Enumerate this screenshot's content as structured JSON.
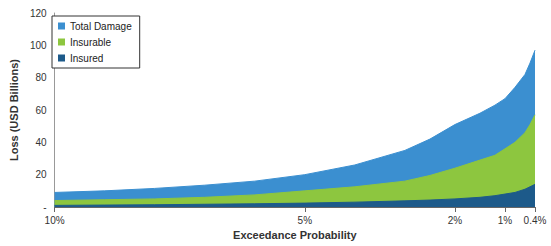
{
  "chart_data": {
    "type": "area",
    "x_label": "Exceedance Probability",
    "y_label": "Loss (USD Billions)",
    "x": [
      10,
      9,
      8,
      7,
      6,
      5,
      4,
      3,
      2.5,
      2,
      1.5,
      1.2,
      1,
      0.8,
      0.6,
      0.5,
      0.4
    ],
    "series": [
      {
        "name": "Total Damage",
        "color": "#3b8fd0",
        "values": [
          9,
          10,
          11.5,
          13.5,
          16,
          20,
          26,
          35,
          42,
          51,
          58,
          63,
          67,
          74,
          82,
          89,
          97
        ]
      },
      {
        "name": "Insurable",
        "color": "#8dc63f",
        "values": [
          4,
          4.5,
          5,
          6,
          7.5,
          10,
          12.5,
          16,
          19.5,
          24,
          29,
          32,
          36,
          40,
          46,
          51,
          57
        ]
      },
      {
        "name": "Insured",
        "color": "#1d5a8a",
        "values": [
          1,
          1.2,
          1.4,
          1.7,
          2,
          2.4,
          3,
          3.8,
          4.3,
          5,
          6,
          7,
          8,
          9,
          11,
          12.5,
          14
        ]
      }
    ],
    "xlim": [
      10,
      0.4
    ],
    "xticks": [
      {
        "value": 10,
        "label": "10%"
      },
      {
        "value": 5,
        "label": "5%"
      },
      {
        "value": 2,
        "label": "2%"
      },
      {
        "value": 1,
        "label": "1%"
      },
      {
        "value": 0.4,
        "label": "0.4%"
      }
    ],
    "ylim": [
      0,
      120
    ],
    "yticks": [
      {
        "value": 0,
        "label": "-"
      },
      20,
      40,
      60,
      80,
      100,
      120
    ],
    "grid": false,
    "legend": "upper left"
  }
}
